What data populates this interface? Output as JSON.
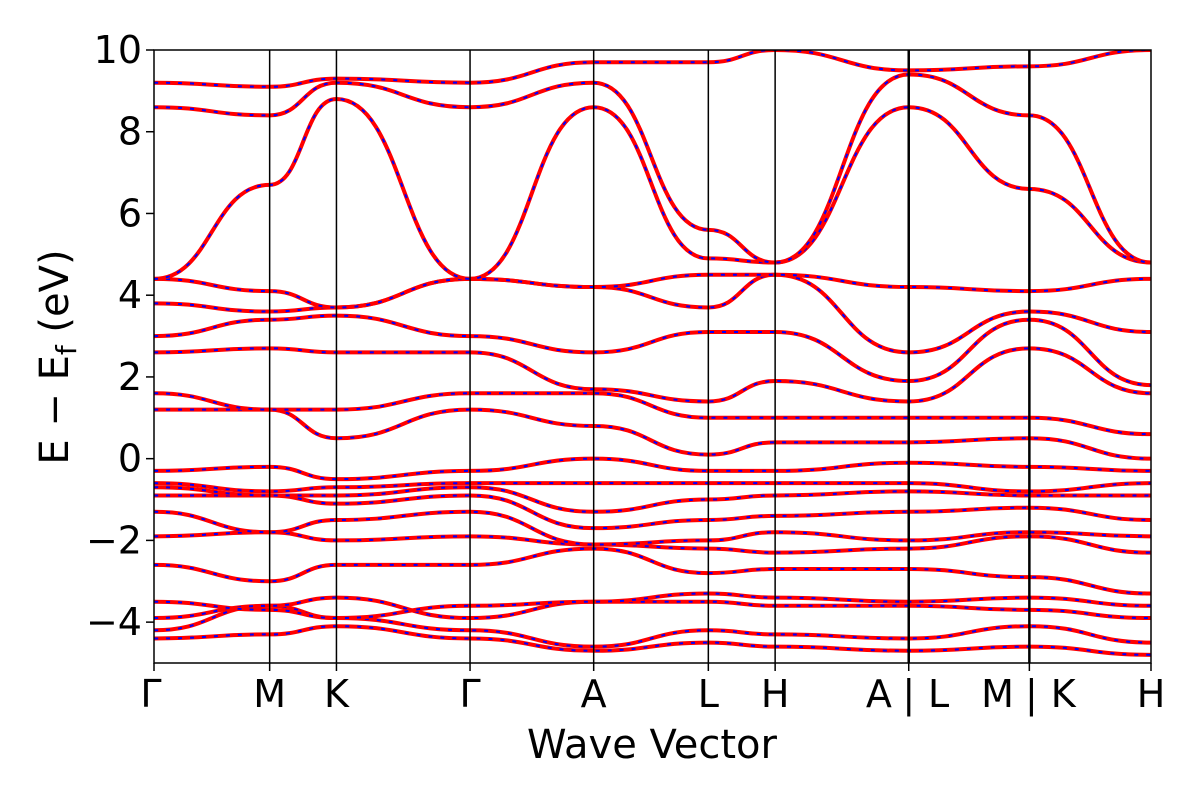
{
  "chart_data": {
    "type": "line",
    "title": "",
    "xlabel": "Wave Vector",
    "ylabel": "E − E",
    "ylabel_subscript": "f",
    "ylabel_unit": " (eV)",
    "ylim": [
      -5,
      10
    ],
    "yticks": [
      -4,
      -2,
      0,
      2,
      4,
      6,
      8,
      10
    ],
    "ytick_labels": [
      "−4",
      "−2",
      "0",
      "2",
      "4",
      "6",
      "8",
      "10"
    ],
    "kpath": [
      {
        "label": "Γ",
        "k": 0.0
      },
      {
        "label": "M",
        "k": 0.116
      },
      {
        "label": "K",
        "k": 0.183
      },
      {
        "label": "Γ",
        "k": 0.317
      },
      {
        "label": "A",
        "k": 0.441
      },
      {
        "label": "L",
        "k": 0.556
      },
      {
        "label": "H",
        "k": 0.623
      },
      {
        "label": "A | L",
        "k": 0.757
      },
      {
        "label": "M | K",
        "k": 0.878
      },
      {
        "label": "H",
        "k": 1.0
      }
    ],
    "xtick_labels_drawn": [
      "Γ",
      "M",
      "K",
      "Γ",
      "A",
      "L",
      "H",
      "A",
      "|",
      "L",
      "M",
      "|",
      "K",
      "H"
    ],
    "colors": {
      "series_a": "#ff0000",
      "series_b": "#0000ff",
      "segment_line": "#000000"
    },
    "series": [
      {
        "style": "solid red",
        "color": "#ff0000"
      },
      {
        "style": "dashed blue",
        "color": "#0000ff"
      }
    ],
    "bands": [
      {
        "k": [
          0.0,
          0.116,
          0.183,
          0.317,
          0.441,
          0.556,
          0.623,
          0.757,
          0.878,
          1.0
        ],
        "E": [
          -4.4,
          -4.3,
          -4.1,
          -4.4,
          -4.7,
          -4.5,
          -4.6,
          -4.7,
          -4.6,
          -4.8
        ]
      },
      {
        "k": [
          0.0,
          0.116,
          0.183,
          0.317,
          0.441,
          0.556,
          0.623,
          0.757,
          0.878,
          1.0
        ],
        "E": [
          -4.2,
          -3.6,
          -3.9,
          -4.2,
          -4.6,
          -4.2,
          -4.3,
          -4.4,
          -4.1,
          -4.5
        ]
      },
      {
        "k": [
          0.0,
          0.116,
          0.183,
          0.317,
          0.441,
          0.556,
          0.623,
          0.757,
          0.878,
          1.0
        ],
        "E": [
          -3.9,
          -3.6,
          -3.4,
          -3.9,
          -3.5,
          -3.5,
          -3.6,
          -3.6,
          -3.7,
          -3.9
        ]
      },
      {
        "k": [
          0.0,
          0.116,
          0.183,
          0.317,
          0.441,
          0.556,
          0.623,
          0.757,
          0.878,
          1.0
        ],
        "E": [
          -3.5,
          -3.7,
          -3.9,
          -3.6,
          -3.5,
          -3.3,
          -3.4,
          -3.5,
          -3.4,
          -3.6
        ]
      },
      {
        "k": [
          0.0,
          0.116,
          0.183,
          0.317,
          0.441,
          0.556,
          0.623,
          0.757,
          0.878,
          1.0
        ],
        "E": [
          -2.6,
          -3.0,
          -2.6,
          -2.6,
          -2.2,
          -2.8,
          -2.7,
          -2.7,
          -2.9,
          -3.3
        ]
      },
      {
        "k": [
          0.0,
          0.116,
          0.183,
          0.317,
          0.441,
          0.556,
          0.623,
          0.757,
          0.878,
          1.0
        ],
        "E": [
          -1.9,
          -1.8,
          -2.0,
          -1.9,
          -2.1,
          -2.2,
          -2.3,
          -2.2,
          -1.9,
          -2.3
        ]
      },
      {
        "k": [
          0.0,
          0.116,
          0.183,
          0.317,
          0.441,
          0.556,
          0.623,
          0.757,
          0.878,
          1.0
        ],
        "E": [
          -1.3,
          -1.8,
          -1.5,
          -1.3,
          -2.1,
          -2.0,
          -1.8,
          -2.0,
          -1.8,
          -1.9
        ]
      },
      {
        "k": [
          0.0,
          0.116,
          0.183,
          0.317,
          0.441,
          0.556,
          0.623,
          0.757,
          0.878,
          1.0
        ],
        "E": [
          -0.9,
          -0.9,
          -1.1,
          -0.9,
          -1.7,
          -1.5,
          -1.4,
          -1.3,
          -1.2,
          -1.5
        ]
      },
      {
        "k": [
          0.0,
          0.116,
          0.183,
          0.317,
          0.441,
          0.556,
          0.623,
          0.757,
          0.878,
          1.0
        ],
        "E": [
          -0.7,
          -0.9,
          -0.9,
          -0.7,
          -1.3,
          -1.0,
          -0.9,
          -0.8,
          -0.9,
          -0.9
        ]
      },
      {
        "k": [
          0.0,
          0.116,
          0.183,
          0.317,
          0.441,
          0.556,
          0.623,
          0.757,
          0.878,
          1.0
        ],
        "E": [
          -0.6,
          -0.8,
          -0.7,
          -0.6,
          -0.6,
          -0.6,
          -0.6,
          -0.6,
          -0.8,
          -0.6
        ]
      },
      {
        "k": [
          0.0,
          0.116,
          0.183,
          0.317,
          0.441,
          0.556,
          0.623,
          0.757,
          0.878,
          1.0
        ],
        "E": [
          -0.3,
          -0.2,
          -0.5,
          -0.3,
          0.0,
          -0.3,
          -0.3,
          -0.1,
          -0.2,
          -0.3
        ]
      },
      {
        "k": [
          0.0,
          0.116,
          0.183,
          0.317,
          0.441,
          0.556,
          0.623,
          0.757,
          0.878,
          1.0
        ],
        "E": [
          1.2,
          1.2,
          0.5,
          1.2,
          0.8,
          0.1,
          0.4,
          0.4,
          0.5,
          0.0
        ]
      },
      {
        "k": [
          0.0,
          0.116,
          0.183,
          0.317,
          0.441,
          0.556,
          0.623,
          0.757,
          0.878,
          1.0
        ],
        "E": [
          1.6,
          1.2,
          1.2,
          1.6,
          1.6,
          1.0,
          1.0,
          1.0,
          1.0,
          0.6
        ]
      },
      {
        "k": [
          0.0,
          0.116,
          0.183,
          0.317,
          0.441,
          0.556,
          0.623,
          0.757,
          0.878,
          1.0
        ],
        "E": [
          2.6,
          2.7,
          2.6,
          2.6,
          1.7,
          1.4,
          1.9,
          1.4,
          2.7,
          1.6
        ]
      },
      {
        "k": [
          0.0,
          0.116,
          0.183,
          0.317,
          0.441,
          0.556,
          0.623,
          0.757,
          0.878,
          1.0
        ],
        "E": [
          3.0,
          3.4,
          3.5,
          3.0,
          2.6,
          3.1,
          3.1,
          1.9,
          3.4,
          1.8
        ]
      },
      {
        "k": [
          0.0,
          0.116,
          0.183,
          0.317,
          0.441,
          0.556,
          0.623,
          0.757,
          0.878,
          1.0
        ],
        "E": [
          3.8,
          3.6,
          3.7,
          4.4,
          4.2,
          3.7,
          4.5,
          2.6,
          3.6,
          3.1
        ]
      },
      {
        "k": [
          0.0,
          0.116,
          0.183,
          0.317,
          0.441,
          0.556,
          0.623,
          0.757,
          0.878,
          1.0
        ],
        "E": [
          4.4,
          4.1,
          3.7,
          4.4,
          4.2,
          4.5,
          4.5,
          4.2,
          4.1,
          4.4
        ]
      },
      {
        "k": [
          0.0,
          0.116,
          0.183,
          0.317,
          0.441,
          0.556,
          0.623,
          0.757,
          0.878,
          1.0
        ],
        "E": [
          4.4,
          6.7,
          8.8,
          4.4,
          8.6,
          4.9,
          4.8,
          8.6,
          6.6,
          4.8
        ]
      },
      {
        "k": [
          0.0,
          0.116,
          0.183,
          0.317,
          0.441,
          0.556,
          0.623,
          0.757,
          0.878,
          1.0
        ],
        "E": [
          8.6,
          8.4,
          9.2,
          8.6,
          9.2,
          5.6,
          4.8,
          9.4,
          8.4,
          4.8
        ]
      },
      {
        "k": [
          0.0,
          0.116,
          0.183,
          0.317,
          0.441,
          0.556,
          0.623,
          0.757,
          0.878,
          1.0
        ],
        "E": [
          9.2,
          9.1,
          9.3,
          9.2,
          9.7,
          9.7,
          10.0,
          9.5,
          9.6,
          10.0
        ]
      }
    ]
  }
}
